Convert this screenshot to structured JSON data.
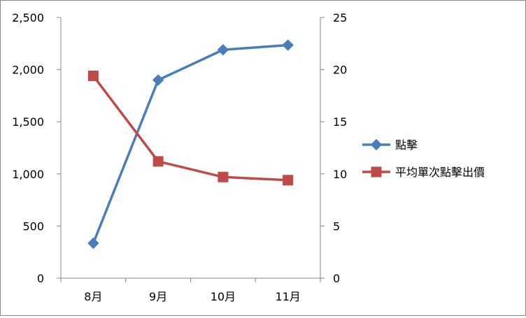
{
  "chart_data": {
    "type": "line",
    "categories": [
      "8月",
      "9月",
      "10月",
      "11月"
    ],
    "series": [
      {
        "name": "點擊",
        "axis": "left",
        "color": "#4A7EBB",
        "marker": "diamond",
        "values": [
          335,
          1900,
          2190,
          2235
        ]
      },
      {
        "name": "平均單次點擊出價",
        "axis": "right",
        "color": "#BE4B48",
        "marker": "square",
        "values": [
          19.4,
          11.2,
          9.7,
          9.4
        ]
      }
    ],
    "y_left": {
      "min": 0,
      "max": 2500,
      "ticks": [
        "0",
        "500",
        "1,000",
        "1,500",
        "2,000",
        "2,500"
      ]
    },
    "y_right": {
      "min": 0,
      "max": 25,
      "ticks": [
        "0",
        "5",
        "10",
        "15",
        "20",
        "25"
      ]
    },
    "grid": false,
    "legend_position": "right"
  }
}
